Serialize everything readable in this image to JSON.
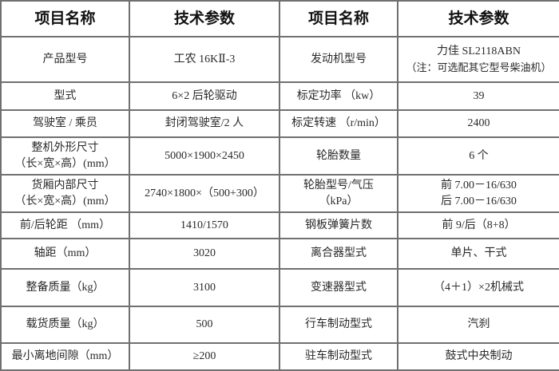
{
  "header": {
    "col1": "项目名称",
    "col2": "技术参数",
    "col3": "项目名称",
    "col4": "技术参数"
  },
  "rows": [
    {
      "l_name": [
        "产品型号"
      ],
      "l_value": [
        "工农 16KⅡ-3"
      ],
      "r_name": [
        "发动机型号"
      ],
      "r_value": [
        "力佳 SL2118ABN",
        "（注：可选配其它型号柴油机）"
      ]
    },
    {
      "l_name": [
        "型式"
      ],
      "l_value": [
        "6×2 后轮驱动"
      ],
      "r_name": [
        "标定功率 （kw）"
      ],
      "r_value": [
        "39"
      ]
    },
    {
      "l_name": [
        "驾驶室 / 乘员"
      ],
      "l_value": [
        "封闭驾驶室/2 人"
      ],
      "r_name": [
        "标定转速 （r/min）"
      ],
      "r_value": [
        "2400"
      ]
    },
    {
      "l_name": [
        "整机外形尺寸",
        "（长×宽×高）(mm）"
      ],
      "l_value": [
        "5000×1900×2450"
      ],
      "r_name": [
        "轮胎数量"
      ],
      "r_value": [
        "6 个"
      ]
    },
    {
      "l_name": [
        "货厢内部尺寸",
        "（长×宽×高）(mm）"
      ],
      "l_value": [
        "2740×1800×（500+300）"
      ],
      "r_name": [
        "轮胎型号/气压",
        "（kPa）"
      ],
      "r_value": [
        "前 7.00－16/630",
        "后 7.00－16/630"
      ]
    },
    {
      "l_name": [
        "前/后轮距 （mm）"
      ],
      "l_value": [
        "1410/1570"
      ],
      "r_name": [
        "钢板弹簧片数"
      ],
      "r_value": [
        "前 9/后（8+8）"
      ]
    },
    {
      "l_name": [
        "轴距（mm）"
      ],
      "l_value": [
        "3020"
      ],
      "r_name": [
        "离合器型式"
      ],
      "r_value": [
        "单片、干式"
      ]
    },
    {
      "l_name": [
        "整备质量（kg）"
      ],
      "l_value": [
        "3100"
      ],
      "r_name": [
        "变速器型式"
      ],
      "r_value": [
        "（4＋1）×2机械式"
      ]
    },
    {
      "l_name": [
        "载货质量（kg）"
      ],
      "l_value": [
        "500"
      ],
      "r_name": [
        "行车制动型式"
      ],
      "r_value": [
        "汽刹"
      ]
    },
    {
      "l_name": [
        "最小离地间隙（mm）"
      ],
      "l_value": [
        "≥200"
      ],
      "r_name": [
        "驻车制动型式"
      ],
      "r_value": [
        "鼓式中央制动"
      ]
    }
  ]
}
